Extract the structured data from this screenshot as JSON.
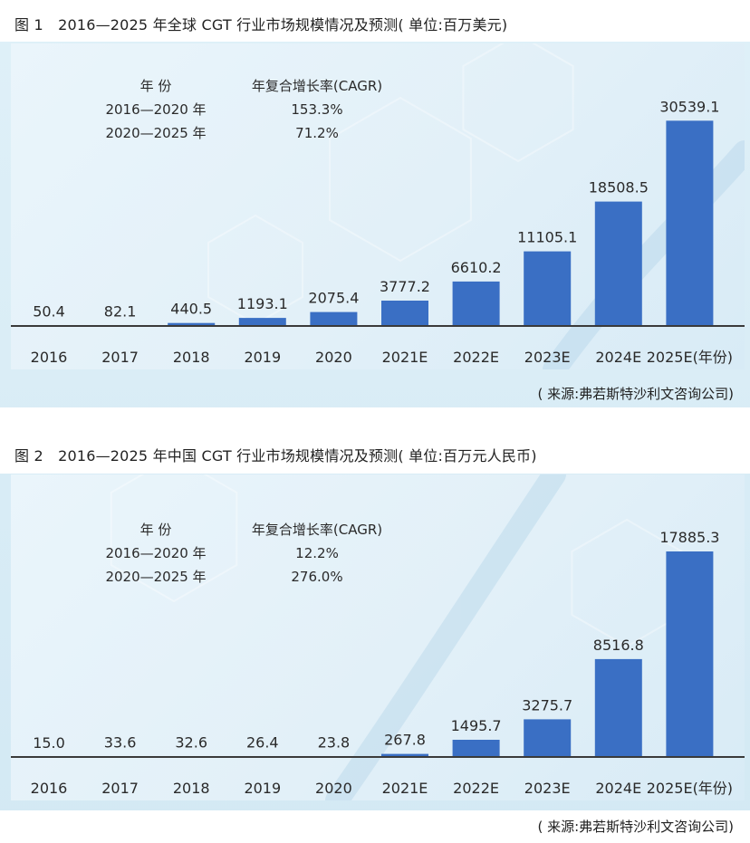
{
  "chart_data": [
    {
      "type": "bar",
      "title": "图 1　2016—2025 年全球 CGT 行业市场规模情况及预测( 单位:百万美元)",
      "categories": [
        "2016",
        "2017",
        "2018",
        "2019",
        "2020",
        "2021E",
        "2022E",
        "2023E",
        "2024E",
        "2025E(年份)"
      ],
      "values": [
        50.4,
        82.1,
        440.5,
        1193.1,
        2075.4,
        3777.2,
        6610.2,
        11105.1,
        18508.5,
        30539.1
      ],
      "value_labels": [
        "50.4",
        "82.1",
        "440.5",
        "1193.1",
        "2075.4",
        "3777.2",
        "6610.2",
        "11105.1",
        "18508.5",
        "30539.1"
      ],
      "ylim": [
        0,
        33000
      ],
      "cagr_table": {
        "header": [
          "年 份",
          "年复合增长率(CAGR)"
        ],
        "rows": [
          [
            "2016—2020 年",
            "153.3%"
          ],
          [
            "2020—2025 年",
            "71.2%"
          ]
        ]
      },
      "source": "( 来源:弗若斯特沙利文咨询公司)",
      "bar_color": "#3a6fc4"
    },
    {
      "type": "bar",
      "title": "图 2　2016—2025 年中国 CGT 行业市场规模情况及预测( 单位:百万元人民币)",
      "categories": [
        "2016",
        "2017",
        "2018",
        "2019",
        "2020",
        "2021E",
        "2022E",
        "2023E",
        "2024E",
        "2025E(年份)"
      ],
      "values": [
        15.0,
        33.6,
        32.6,
        26.4,
        23.8,
        267.8,
        1495.7,
        3275.7,
        8516.8,
        17885.3
      ],
      "value_labels": [
        "15.0",
        "33.6",
        "32.6",
        "26.4",
        "23.8",
        "267.8",
        "1495.7",
        "3275.7",
        "8516.8",
        "17885.3"
      ],
      "ylim": [
        0,
        19300
      ],
      "cagr_table": {
        "header": [
          "年 份",
          "年复合增长率(CAGR)"
        ],
        "rows": [
          [
            "2016—2020 年",
            "12.2%"
          ],
          [
            "2020—2025 年",
            "276.0%"
          ]
        ]
      },
      "source": "( 来源:弗若斯特沙利文咨询公司)",
      "bar_color": "#3a6fc4"
    }
  ]
}
